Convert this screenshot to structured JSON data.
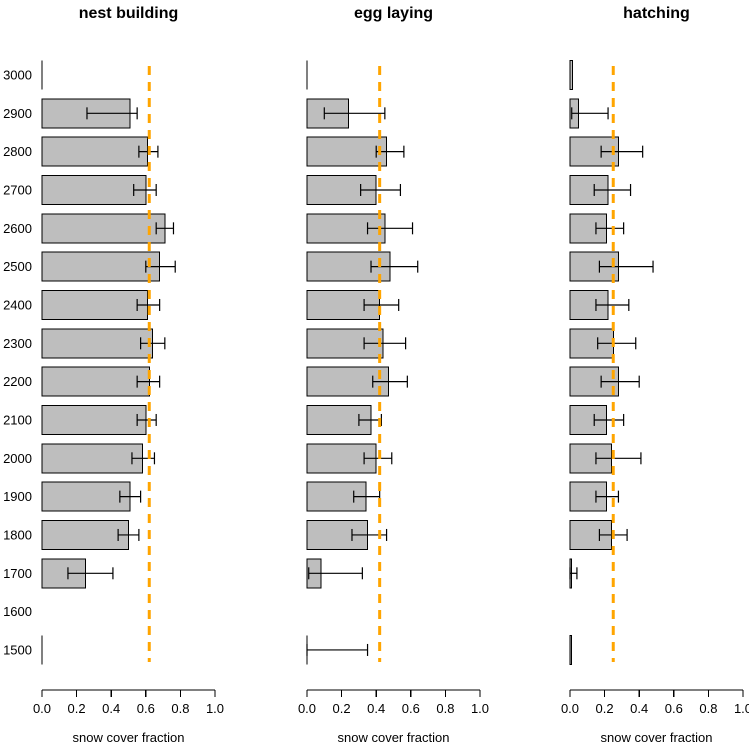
{
  "figure": {
    "background": "#ffffff",
    "bar_fill": "#bebebe",
    "bar_stroke": "#000000",
    "errorbar_color": "#000000",
    "refline_color": "#ffa500",
    "xlabel": "snow cover fraction"
  },
  "chart_data": [
    {
      "type": "bar",
      "orientation": "horizontal",
      "title": "nest building",
      "xlabel": "snow cover fraction",
      "xlim": [
        0,
        1
      ],
      "xticks": [
        0.0,
        0.2,
        0.4,
        0.6,
        0.8,
        1.0
      ],
      "show_y_labels": true,
      "refline": 0.62,
      "categories": [
        3000,
        2900,
        2800,
        2700,
        2600,
        2500,
        2400,
        2300,
        2200,
        2100,
        2000,
        1900,
        1800,
        1700,
        1600,
        1500
      ],
      "values": [
        0,
        0.51,
        0.61,
        0.6,
        0.71,
        0.68,
        0.61,
        0.64,
        0.62,
        0.6,
        0.58,
        0.51,
        0.5,
        0.25,
        null,
        0
      ],
      "error_ranges": [
        null,
        [
          0.26,
          0.55
        ],
        [
          0.56,
          0.67
        ],
        [
          0.53,
          0.66
        ],
        [
          0.66,
          0.76
        ],
        [
          0.6,
          0.77
        ],
        [
          0.55,
          0.68
        ],
        [
          0.57,
          0.71
        ],
        [
          0.55,
          0.68
        ],
        [
          0.55,
          0.66
        ],
        [
          0.52,
          0.65
        ],
        [
          0.45,
          0.57
        ],
        [
          0.44,
          0.56
        ],
        [
          0.15,
          0.41
        ],
        null,
        null
      ]
    },
    {
      "type": "bar",
      "orientation": "horizontal",
      "title": "egg laying",
      "xlabel": "snow cover fraction",
      "xlim": [
        0,
        1
      ],
      "xticks": [
        0.0,
        0.2,
        0.4,
        0.6,
        0.8,
        1.0
      ],
      "show_y_labels": false,
      "refline": 0.42,
      "categories": [
        3000,
        2900,
        2800,
        2700,
        2600,
        2500,
        2400,
        2300,
        2200,
        2100,
        2000,
        1900,
        1800,
        1700,
        1600,
        1500
      ],
      "values": [
        0,
        0.24,
        0.46,
        0.4,
        0.45,
        0.48,
        0.42,
        0.44,
        0.47,
        0.37,
        0.4,
        0.34,
        0.35,
        0.08,
        null,
        0
      ],
      "error_ranges": [
        null,
        [
          0.1,
          0.45
        ],
        [
          0.4,
          0.56
        ],
        [
          0.31,
          0.54
        ],
        [
          0.35,
          0.61
        ],
        [
          0.37,
          0.64
        ],
        [
          0.33,
          0.53
        ],
        [
          0.33,
          0.57
        ],
        [
          0.38,
          0.58
        ],
        [
          0.3,
          0.43
        ],
        [
          0.33,
          0.49
        ],
        [
          0.27,
          0.42
        ],
        [
          0.26,
          0.46
        ],
        [
          0.01,
          0.32
        ],
        null,
        [
          0.0,
          0.35
        ]
      ]
    },
    {
      "type": "bar",
      "orientation": "horizontal",
      "title": "hatching",
      "xlabel": "snow cover fraction",
      "xlim": [
        0,
        1
      ],
      "xticks": [
        0.0,
        0.2,
        0.4,
        0.6,
        0.8,
        1.0
      ],
      "show_y_labels": false,
      "refline": 0.25,
      "categories": [
        3000,
        2900,
        2800,
        2700,
        2600,
        2500,
        2400,
        2300,
        2200,
        2100,
        2000,
        1900,
        1800,
        1700,
        1600,
        1500
      ],
      "values": [
        0.015,
        0.05,
        0.28,
        0.22,
        0.21,
        0.28,
        0.22,
        0.25,
        0.28,
        0.21,
        0.24,
        0.21,
        0.24,
        0.01,
        null,
        0.01
      ],
      "error_ranges": [
        null,
        [
          0.01,
          0.22
        ],
        [
          0.18,
          0.42
        ],
        [
          0.14,
          0.35
        ],
        [
          0.15,
          0.31
        ],
        [
          0.17,
          0.48
        ],
        [
          0.15,
          0.34
        ],
        [
          0.16,
          0.38
        ],
        [
          0.18,
          0.4
        ],
        [
          0.14,
          0.31
        ],
        [
          0.15,
          0.41
        ],
        [
          0.15,
          0.28
        ],
        [
          0.17,
          0.33
        ],
        [
          0.0,
          0.04
        ],
        null,
        null
      ]
    }
  ]
}
